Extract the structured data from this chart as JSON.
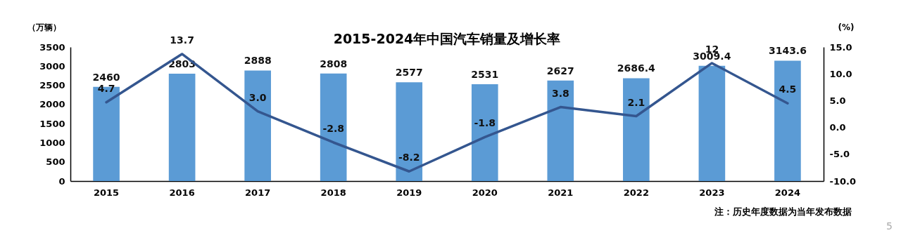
{
  "chart_data": {
    "type": "bar",
    "title": "2015-2024年中国汽车销量及增长率",
    "categories": [
      "2015",
      "2016",
      "2017",
      "2018",
      "2019",
      "2020",
      "2021",
      "2022",
      "2023",
      "2024"
    ],
    "ylabel": "（万辆）",
    "y2label": "(%)",
    "ylim": [
      0,
      3500
    ],
    "yticks": [
      0,
      500,
      1000,
      1500,
      2000,
      2500,
      3000,
      3500
    ],
    "y2lim": [
      -10,
      15
    ],
    "y2ticks": [
      {
        "value": -10,
        "label": "-10.0"
      },
      {
        "value": -5,
        "label": "-5.0"
      },
      {
        "value": 0,
        "label": "0.0"
      },
      {
        "value": 5,
        "label": "5.0"
      },
      {
        "value": 10,
        "label": "10.0"
      },
      {
        "value": 15,
        "label": "15.0"
      }
    ],
    "grid": false,
    "legend": false,
    "series": [
      {
        "color": "#5b9bd5",
        "values": [
          2460,
          2803,
          2888,
          2808,
          2577,
          2531,
          2627,
          2686.4,
          3009.4,
          3143.6
        ],
        "value_labels": [
          "2460",
          "2803",
          "2888",
          "2808",
          "2577",
          "2531",
          "2627",
          "2686.4",
          "3009.4",
          "3143.6"
        ]
      },
      {
        "type": "line",
        "axis": "y2",
        "color": "#34568f",
        "values": [
          4.7,
          13.7,
          3.0,
          -2.8,
          -8.2,
          -1.8,
          3.8,
          2.1,
          12,
          4.5
        ],
        "value_labels": [
          "4.7",
          "13.7",
          "3.0",
          "-2.8",
          "-8.2",
          "-1.8",
          "3.8",
          "2.1",
          "12",
          "4.5"
        ]
      }
    ],
    "annotations": [
      "注：历史年度数据为当年发布数据",
      "5"
    ]
  }
}
